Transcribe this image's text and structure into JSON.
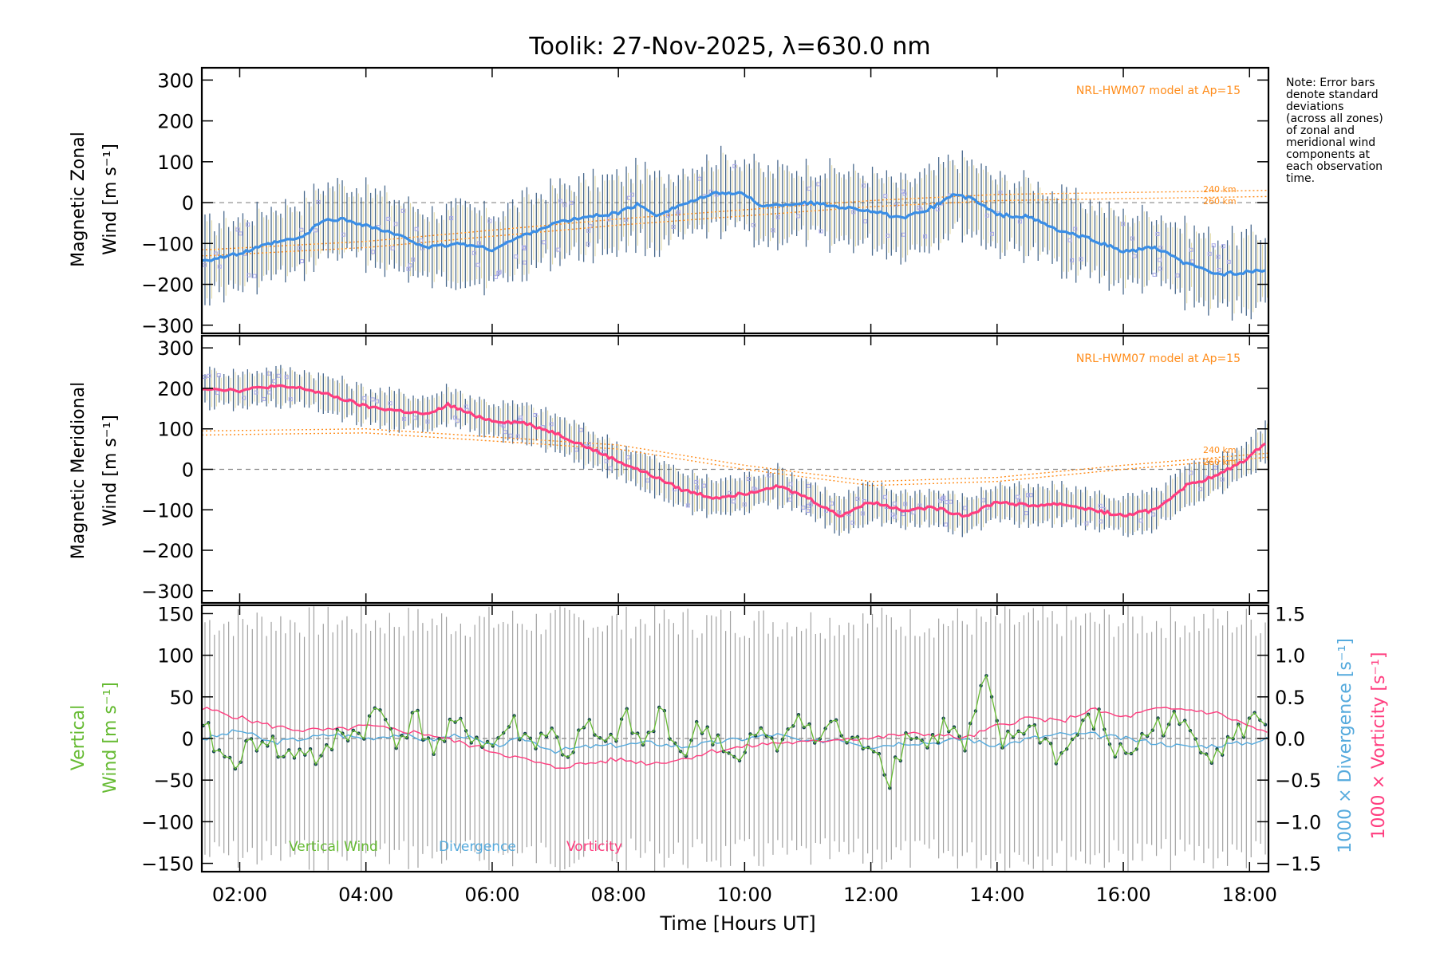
{
  "figure_title": "Toolik: 27-Nov-2025, λ=630.0 nm",
  "note_lines": [
    "Note: Error bars",
    "denote standard",
    "deviations",
    "(across all zones)",
    "of zonal and",
    "meridional wind",
    "components at",
    "each observation",
    "time."
  ],
  "colors": {
    "zonal": "#3a8ee6",
    "meridional": "#ff3d7f",
    "vertical": "#66bb33",
    "divergence": "#55aadd",
    "vorticity": "#ff3d7f",
    "model": "#ff8c1a",
    "errorbar": "#2a4f7a",
    "outlier": "#a8a8e8",
    "vertical_point": "#12404f"
  },
  "chart_data": [
    {
      "type": "line",
      "title": "Magnetic Zonal Wind",
      "ylabel_line1": "Magnetic Zonal",
      "ylabel_line2": "Wind [m s⁻¹]",
      "model_label": "NRL-HWM07 model at Ap=15",
      "model_alt_labels": [
        "240 km",
        "260 km"
      ],
      "ylim": [
        -320,
        330
      ],
      "yticks": [
        "300",
        "200",
        "100",
        "0",
        "−100",
        "−200",
        "−300"
      ],
      "series": [
        {
          "name": "Zonal wind",
          "x": [
            1.5,
            2.0,
            2.5,
            3.0,
            3.3,
            3.6,
            4.0,
            4.5,
            5.0,
            5.5,
            6.0,
            6.5,
            7.0,
            7.5,
            8.0,
            8.3,
            8.6,
            9.0,
            9.3,
            9.6,
            10.0,
            10.3,
            10.6,
            11.0,
            11.5,
            12.0,
            12.5,
            13.0,
            13.3,
            13.6,
            14.0,
            14.5,
            15.0,
            15.5,
            16.0,
            16.5,
            17.0,
            17.5,
            18.0,
            18.3
          ],
          "y": [
            -140,
            -125,
            -100,
            -85,
            -45,
            -40,
            -55,
            -80,
            -110,
            -100,
            -115,
            -80,
            -50,
            -35,
            -25,
            -5,
            -30,
            -5,
            10,
            25,
            20,
            -10,
            -5,
            0,
            -10,
            -20,
            -40,
            -10,
            20,
            10,
            -30,
            -35,
            -70,
            -90,
            -120,
            -110,
            -150,
            -175,
            -170,
            -165
          ]
        },
        {
          "name": "NRL-HWM07 240 km",
          "x": [
            1.5,
            4,
            8,
            12,
            14,
            18.3
          ],
          "y": [
            -115,
            -95,
            -40,
            5,
            20,
            30
          ]
        },
        {
          "name": "NRL-HWM07 260 km",
          "x": [
            1.5,
            4,
            8,
            12,
            14,
            18.3
          ],
          "y": [
            -130,
            -110,
            -55,
            -10,
            5,
            15
          ]
        }
      ],
      "error_sd": 90
    },
    {
      "type": "line",
      "title": "Magnetic Meridional Wind",
      "ylabel_line1": "Magnetic Meridional",
      "ylabel_line2": "Wind [m s⁻¹]",
      "model_label": "NRL-HWM07 model at Ap=15",
      "model_alt_labels": [
        "240 km",
        "260 km"
      ],
      "ylim": [
        -330,
        330
      ],
      "yticks": [
        "300",
        "200",
        "100",
        "0",
        "−100",
        "−200",
        "−300"
      ],
      "series": [
        {
          "name": "Meridional wind",
          "x": [
            1.5,
            2.0,
            2.5,
            3.0,
            3.5,
            4.0,
            4.5,
            5.0,
            5.3,
            5.6,
            6.0,
            6.5,
            7.0,
            7.5,
            8.0,
            8.3,
            8.6,
            9.0,
            9.5,
            10.0,
            10.5,
            11.0,
            11.5,
            12.0,
            12.5,
            13.0,
            13.5,
            14.0,
            14.5,
            15.0,
            15.5,
            16.0,
            16.5,
            17.0,
            17.5,
            18.0,
            18.3
          ],
          "y": [
            200,
            195,
            205,
            200,
            180,
            155,
            145,
            135,
            160,
            140,
            120,
            115,
            90,
            55,
            20,
            0,
            -20,
            -50,
            -70,
            -60,
            -40,
            -70,
            -115,
            -80,
            -100,
            -95,
            -115,
            -80,
            -90,
            -85,
            -100,
            -115,
            -100,
            -40,
            -15,
            30,
            75
          ]
        },
        {
          "name": "NRL-HWM07 240 km",
          "x": [
            1.5,
            4,
            8,
            10,
            12,
            14,
            16,
            18.3
          ],
          "y": [
            95,
            100,
            60,
            10,
            -30,
            -20,
            10,
            40
          ]
        },
        {
          "name": "NRL-HWM07 260 km",
          "x": [
            1.5,
            4,
            8,
            10,
            12,
            14,
            16,
            18.3
          ],
          "y": [
            85,
            90,
            50,
            0,
            -40,
            -30,
            0,
            30
          ]
        }
      ],
      "error_sd": 45
    },
    {
      "type": "line",
      "title": "Vertical Wind",
      "ylabel_line1": "Vertical",
      "ylabel_line2": "Wind [m s⁻¹]",
      "y2label": "1000 × Divergence [s⁻¹]",
      "y3label": "1000 × Vorticity [s⁻¹]",
      "ylim": [
        -160,
        160
      ],
      "y2lim": [
        -1.6,
        1.6
      ],
      "yticks": [
        "150",
        "100",
        "50",
        "0",
        "−50",
        "−100",
        "−150"
      ],
      "y2ticks": [
        "1.5",
        "1.0",
        "0.5",
        "0.0",
        "−0.5",
        "−1.0",
        "−1.5"
      ],
      "legend": [
        "Vertical Wind",
        "Divergence",
        "Vorticity"
      ],
      "series": [
        {
          "name": "Vertical Wind",
          "x": [
            1.5,
            1.8,
            2.1,
            2.4,
            2.7,
            3.0,
            3.3,
            3.6,
            3.9,
            4.2,
            4.5,
            4.8,
            5.1,
            5.4,
            5.7,
            6.0,
            6.3,
            6.6,
            6.9,
            7.2,
            7.5,
            7.8,
            8.1,
            8.4,
            8.7,
            9.0,
            9.3,
            9.6,
            9.9,
            10.2,
            10.5,
            10.8,
            11.1,
            11.4,
            11.7,
            12.0,
            12.3,
            12.6,
            12.9,
            13.2,
            13.5,
            13.8,
            14.1,
            14.4,
            14.7,
            15.0,
            15.3,
            15.6,
            15.9,
            16.2,
            16.5,
            16.8,
            17.1,
            17.4,
            17.7,
            18.0,
            18.3
          ],
          "y": [
            5,
            -30,
            -15,
            5,
            -25,
            -10,
            -30,
            10,
            5,
            35,
            0,
            25,
            -15,
            15,
            5,
            -10,
            20,
            -5,
            10,
            -20,
            15,
            -15,
            25,
            -10,
            35,
            -20,
            15,
            0,
            -35,
            10,
            -15,
            35,
            -5,
            20,
            -10,
            0,
            -45,
            10,
            -10,
            20,
            -15,
            70,
            -10,
            15,
            5,
            -25,
            10,
            25,
            -20,
            -10,
            15,
            20,
            5,
            -15,
            -5,
            20,
            25
          ]
        },
        {
          "name": "Divergence",
          "x": [
            1.5,
            2.0,
            2.5,
            3.0,
            3.5,
            4.0,
            4.5,
            5.0,
            5.5,
            6.0,
            6.5,
            7.0,
            7.5,
            8.0,
            8.5,
            9.0,
            9.5,
            10.0,
            10.5,
            11.0,
            11.5,
            12.0,
            12.5,
            13.0,
            13.5,
            14.0,
            14.5,
            15.0,
            15.5,
            16.0,
            16.5,
            17.0,
            17.5,
            18.0,
            18.3
          ],
          "y": [
            0.0,
            0.1,
            -0.05,
            0.0,
            0.05,
            0.0,
            0.05,
            -0.02,
            0.05,
            -0.1,
            0.0,
            -0.15,
            -0.1,
            -0.08,
            -0.05,
            -0.1,
            -0.05,
            0.0,
            0.05,
            -0.05,
            0.0,
            -0.1,
            -0.05,
            -0.05,
            0.0,
            -0.1,
            0.0,
            0.05,
            0.05,
            0.0,
            -0.05,
            -0.1,
            -0.08,
            -0.05,
            0.0
          ]
        },
        {
          "name": "Vorticity",
          "x": [
            1.5,
            2.0,
            2.5,
            3.0,
            3.5,
            4.0,
            4.5,
            5.0,
            5.5,
            6.0,
            6.5,
            7.0,
            7.5,
            8.0,
            8.5,
            9.0,
            9.5,
            10.0,
            10.5,
            11.0,
            11.5,
            12.0,
            12.5,
            13.0,
            13.5,
            14.0,
            14.5,
            15.0,
            15.5,
            16.0,
            16.5,
            17.0,
            17.5,
            18.0,
            18.3
          ],
          "y": [
            0.35,
            0.25,
            0.15,
            0.1,
            0.1,
            0.15,
            0.1,
            0.05,
            -0.05,
            -0.15,
            -0.25,
            -0.35,
            -0.3,
            -0.25,
            -0.3,
            -0.25,
            -0.15,
            -0.1,
            -0.05,
            -0.05,
            0.0,
            0.0,
            0.05,
            0.05,
            0.0,
            0.15,
            0.25,
            0.2,
            0.35,
            0.25,
            0.35,
            0.35,
            0.3,
            0.15,
            0.05
          ]
        }
      ]
    }
  ],
  "x_axis": {
    "label": "Time [Hours UT]",
    "xlim": [
      1.4,
      18.3
    ],
    "ticks": [
      2,
      4,
      6,
      8,
      10,
      12,
      14,
      16,
      18
    ],
    "tick_labels": [
      "02:00",
      "04:00",
      "06:00",
      "08:00",
      "10:00",
      "12:00",
      "14:00",
      "16:00",
      "18:00"
    ]
  }
}
